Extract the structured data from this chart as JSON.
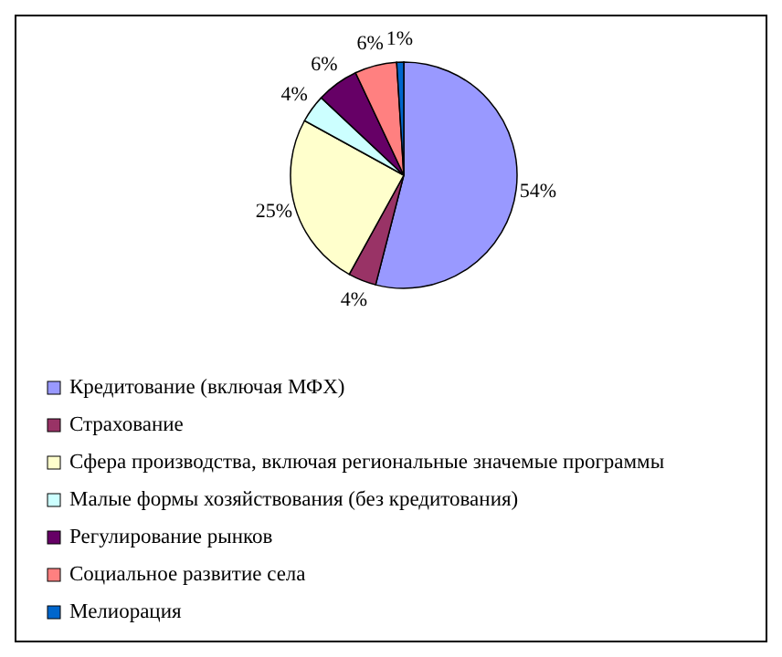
{
  "chart_data": {
    "type": "pie",
    "categories": [
      "Кредитование (включая МФХ)",
      "Страхование",
      "Сфера производства, включая региональные значемые программы",
      "Малые формы хозяйствования (без кредитования)",
      "Регулирование рынков",
      "Социальное развитие села",
      "Мелиорация"
    ],
    "values": [
      54,
      4,
      25,
      4,
      6,
      6,
      1
    ],
    "colors": [
      "#9999ff",
      "#993366",
      "#ffffcc",
      "#ccffff",
      "#660066",
      "#ff8080",
      "#0066cc"
    ],
    "value_labels": [
      "54%",
      "4%",
      "25%",
      "4%",
      "6%",
      "6%",
      "1%"
    ],
    "legend": "bottom"
  }
}
